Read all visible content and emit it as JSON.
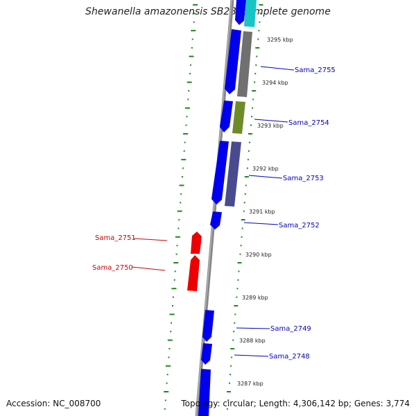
{
  "header": {
    "title": "Shewanella amazonensis SB2B, complete genome"
  },
  "footer": {
    "accession": "Accession: NC_008700",
    "summary": "Topology: circular; Length: 4,306,142 bp; Genes: 3,774"
  },
  "colors": {
    "backbone": "#888888",
    "forward_gene": "#0000ee",
    "reverse_gene": "#ee0000",
    "tick": "#1a8a1a",
    "label_forward": "#0000bb",
    "label_reverse": "#cc0000",
    "cyan": "#19c4c4",
    "gray": "#707070",
    "olive": "#6e8b2a",
    "slate": "#4a4a8e"
  },
  "ticks": [
    "3295 kbp",
    "3294 kbp",
    "3293 kbp",
    "3292 kbp",
    "3291 kbp",
    "3290 kbp",
    "3289 kbp",
    "3288 kbp",
    "3287 kbp"
  ],
  "gene_labels": [
    {
      "text": "Sama_2755",
      "strand": "+"
    },
    {
      "text": "Sama_2754",
      "strand": "+"
    },
    {
      "text": "Sama_2753",
      "strand": "+"
    },
    {
      "text": "Sama_2752",
      "strand": "+"
    },
    {
      "text": "Sama_2751",
      "strand": "-"
    },
    {
      "text": "Sama_2750",
      "strand": "-"
    },
    {
      "text": "Sama_2749",
      "strand": "+"
    },
    {
      "text": "Sama_2748",
      "strand": "+"
    }
  ]
}
